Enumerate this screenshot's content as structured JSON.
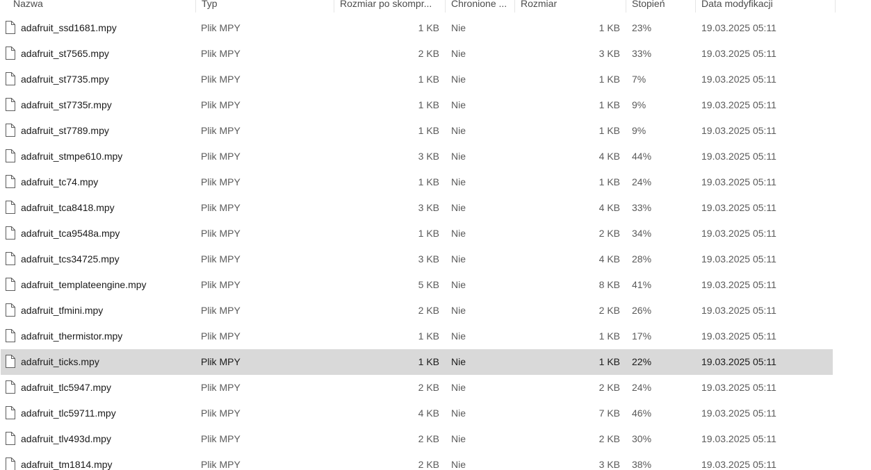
{
  "columns": {
    "name": "Nazwa",
    "type": "Typ",
    "compressed": "Rozmiar po skompr...",
    "protected": "Chronione ...",
    "size": "Rozmiar",
    "ratio": "Stopień",
    "modified": "Data modyfikacji"
  },
  "icons": {
    "file": "file-icon"
  },
  "selected_row": "adafruit_ticks.mpy",
  "rows": [
    {
      "name": "adafruit_ssd1681.mpy",
      "type": "Plik MPY",
      "compressed": "1 KB",
      "protected": "Nie",
      "size": "1 KB",
      "ratio": "23%",
      "modified": "19.03.2025 05:11"
    },
    {
      "name": "adafruit_st7565.mpy",
      "type": "Plik MPY",
      "compressed": "2 KB",
      "protected": "Nie",
      "size": "3 KB",
      "ratio": "33%",
      "modified": "19.03.2025 05:11"
    },
    {
      "name": "adafruit_st7735.mpy",
      "type": "Plik MPY",
      "compressed": "1 KB",
      "protected": "Nie",
      "size": "1 KB",
      "ratio": "7%",
      "modified": "19.03.2025 05:11"
    },
    {
      "name": "adafruit_st7735r.mpy",
      "type": "Plik MPY",
      "compressed": "1 KB",
      "protected": "Nie",
      "size": "1 KB",
      "ratio": "9%",
      "modified": "19.03.2025 05:11"
    },
    {
      "name": "adafruit_st7789.mpy",
      "type": "Plik MPY",
      "compressed": "1 KB",
      "protected": "Nie",
      "size": "1 KB",
      "ratio": "9%",
      "modified": "19.03.2025 05:11"
    },
    {
      "name": "adafruit_stmpe610.mpy",
      "type": "Plik MPY",
      "compressed": "3 KB",
      "protected": "Nie",
      "size": "4 KB",
      "ratio": "44%",
      "modified": "19.03.2025 05:11"
    },
    {
      "name": "adafruit_tc74.mpy",
      "type": "Plik MPY",
      "compressed": "1 KB",
      "protected": "Nie",
      "size": "1 KB",
      "ratio": "24%",
      "modified": "19.03.2025 05:11"
    },
    {
      "name": "adafruit_tca8418.mpy",
      "type": "Plik MPY",
      "compressed": "3 KB",
      "protected": "Nie",
      "size": "4 KB",
      "ratio": "33%",
      "modified": "19.03.2025 05:11"
    },
    {
      "name": "adafruit_tca9548a.mpy",
      "type": "Plik MPY",
      "compressed": "1 KB",
      "protected": "Nie",
      "size": "2 KB",
      "ratio": "34%",
      "modified": "19.03.2025 05:11"
    },
    {
      "name": "adafruit_tcs34725.mpy",
      "type": "Plik MPY",
      "compressed": "3 KB",
      "protected": "Nie",
      "size": "4 KB",
      "ratio": "28%",
      "modified": "19.03.2025 05:11"
    },
    {
      "name": "adafruit_templateengine.mpy",
      "type": "Plik MPY",
      "compressed": "5 KB",
      "protected": "Nie",
      "size": "8 KB",
      "ratio": "41%",
      "modified": "19.03.2025 05:11"
    },
    {
      "name": "adafruit_tfmini.mpy",
      "type": "Plik MPY",
      "compressed": "2 KB",
      "protected": "Nie",
      "size": "2 KB",
      "ratio": "26%",
      "modified": "19.03.2025 05:11"
    },
    {
      "name": "adafruit_thermistor.mpy",
      "type": "Plik MPY",
      "compressed": "1 KB",
      "protected": "Nie",
      "size": "1 KB",
      "ratio": "17%",
      "modified": "19.03.2025 05:11"
    },
    {
      "name": "adafruit_ticks.mpy",
      "type": "Plik MPY",
      "compressed": "1 KB",
      "protected": "Nie",
      "size": "1 KB",
      "ratio": "22%",
      "modified": "19.03.2025 05:11"
    },
    {
      "name": "adafruit_tlc5947.mpy",
      "type": "Plik MPY",
      "compressed": "2 KB",
      "protected": "Nie",
      "size": "2 KB",
      "ratio": "24%",
      "modified": "19.03.2025 05:11"
    },
    {
      "name": "adafruit_tlc59711.mpy",
      "type": "Plik MPY",
      "compressed": "4 KB",
      "protected": "Nie",
      "size": "7 KB",
      "ratio": "46%",
      "modified": "19.03.2025 05:11"
    },
    {
      "name": "adafruit_tlv493d.mpy",
      "type": "Plik MPY",
      "compressed": "2 KB",
      "protected": "Nie",
      "size": "2 KB",
      "ratio": "30%",
      "modified": "19.03.2025 05:11"
    },
    {
      "name": "adafruit_tm1814.mpy",
      "type": "Plik MPY",
      "compressed": "2 KB",
      "protected": "Nie",
      "size": "3 KB",
      "ratio": "38%",
      "modified": "19.03.2025 05:11"
    }
  ]
}
